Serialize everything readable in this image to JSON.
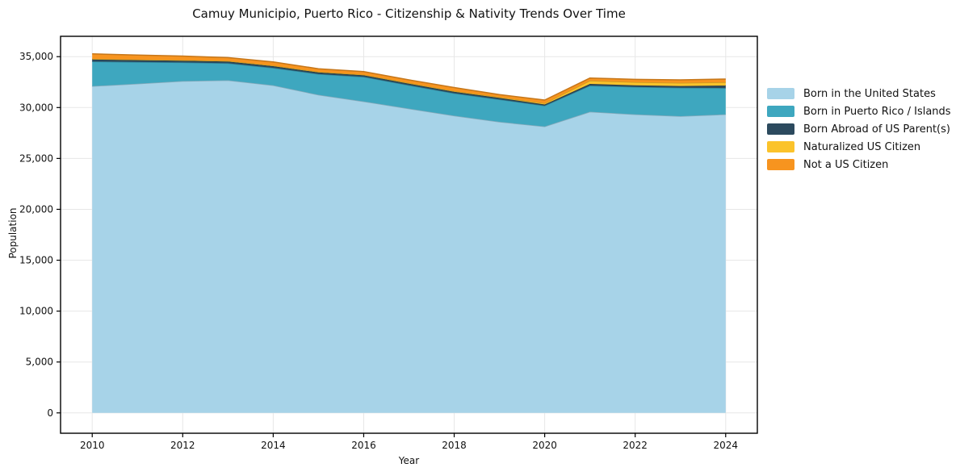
{
  "chart_data": {
    "type": "area",
    "stacked": true,
    "title": "Camuy Municipio, Puerto Rico - Citizenship & Nativity Trends Over Time",
    "xlabel": "Year",
    "ylabel": "Population",
    "x": [
      2010,
      2011,
      2012,
      2013,
      2014,
      2015,
      2016,
      2017,
      2018,
      2019,
      2020,
      2021,
      2022,
      2023,
      2024
    ],
    "series": [
      {
        "name": "Born in the United States",
        "color": "#a7d3e8",
        "values": [
          32100,
          32350,
          32600,
          32680,
          32180,
          31250,
          30600,
          29900,
          29200,
          28600,
          28140,
          29590,
          29330,
          29150,
          29330
        ]
      },
      {
        "name": "Born in Puerto Rico / Islands",
        "color": "#3ea7bf",
        "values": [
          2430,
          2120,
          1830,
          1670,
          1720,
          2050,
          2420,
          2300,
          2200,
          2200,
          2040,
          2570,
          2700,
          2800,
          2590
        ]
      },
      {
        "name": "Born Abroad of US Parent(s)",
        "color": "#2c4a5e",
        "values": [
          200,
          190,
          180,
          170,
          170,
          150,
          150,
          150,
          150,
          140,
          120,
          160,
          160,
          170,
          240
        ]
      },
      {
        "name": "Naturalized US Citizen",
        "color": "#fbc32b",
        "values": [
          50,
          50,
          50,
          60,
          60,
          60,
          60,
          70,
          70,
          80,
          120,
          320,
          300,
          310,
          320
        ]
      },
      {
        "name": "Not a US Citizen",
        "color": "#f7941f",
        "values": [
          490,
          450,
          400,
          330,
          350,
          300,
          300,
          300,
          350,
          250,
          320,
          260,
          280,
          290,
          320
        ]
      }
    ],
    "xticks": [
      2010,
      2012,
      2014,
      2016,
      2018,
      2020,
      2022,
      2024
    ],
    "yticks": [
      0,
      5000,
      10000,
      15000,
      20000,
      25000,
      30000,
      35000
    ],
    "xlim": [
      2009.3,
      2024.7
    ],
    "ylim": [
      -2000,
      37000
    ],
    "grid": true,
    "legend_position": "right"
  }
}
